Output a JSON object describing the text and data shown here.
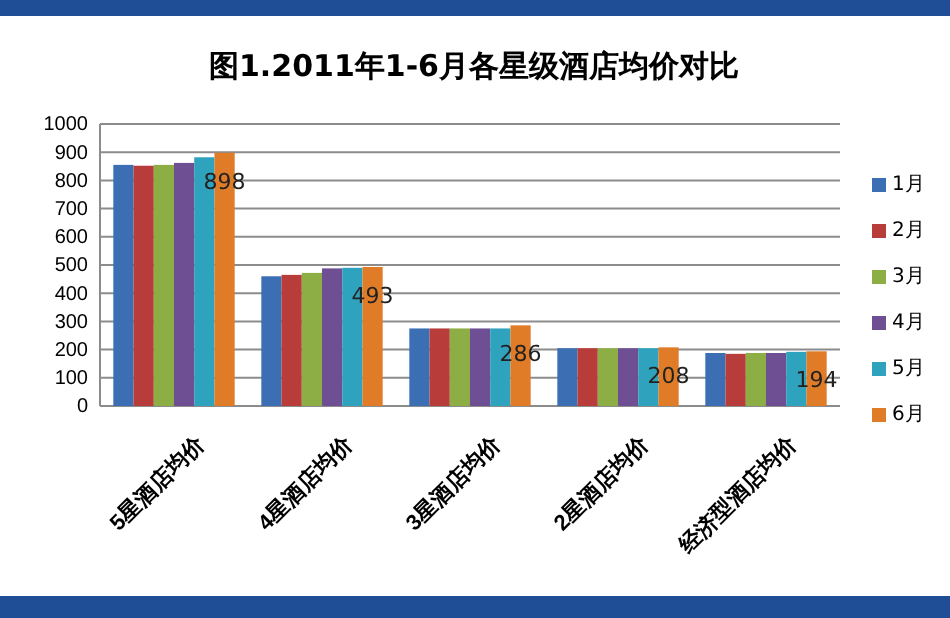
{
  "chart_data": {
    "type": "bar",
    "title": "图1.2011年1-6月各星级酒店均价对比",
    "categories": [
      "5星酒店均价",
      "4星酒店均价",
      "3星酒店均价",
      "2星酒店均价",
      "经济型酒店均价"
    ],
    "series": [
      {
        "name": "1月",
        "color": "#3c6eb4",
        "values": [
          855,
          460,
          275,
          205,
          188
        ]
      },
      {
        "name": "2月",
        "color": "#b73c3a",
        "values": [
          852,
          465,
          275,
          205,
          185
        ]
      },
      {
        "name": "3月",
        "color": "#8dad45",
        "values": [
          855,
          472,
          275,
          205,
          188
        ]
      },
      {
        "name": "4月",
        "color": "#6f4f93",
        "values": [
          862,
          488,
          275,
          205,
          188
        ]
      },
      {
        "name": "5月",
        "color": "#2fa2bd",
        "values": [
          882,
          490,
          275,
          205,
          192
        ]
      },
      {
        "name": "6月",
        "color": "#e07c27",
        "values": [
          898,
          493,
          286,
          208,
          194
        ],
        "value_labels": [
          "898",
          "493",
          "286",
          "208",
          "194"
        ]
      }
    ],
    "ylim": [
      0,
      1000
    ],
    "yticks": [
      0,
      100,
      200,
      300,
      400,
      500,
      600,
      700,
      800,
      900,
      1000
    ],
    "grid": "y",
    "legend": "right"
  }
}
